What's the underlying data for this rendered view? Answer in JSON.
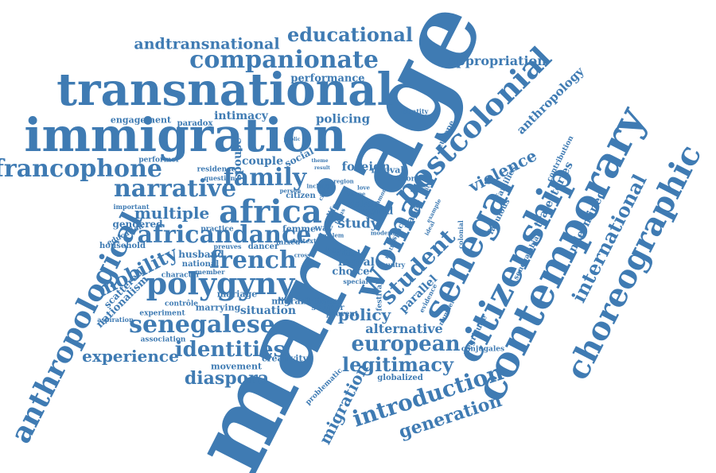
{
  "cloud": {
    "color": "#3f7bb3",
    "words": [
      "marriage",
      "transnational",
      "immigration",
      "senegal",
      "contemporary",
      "citizenship",
      "choreographic",
      "postcolonial",
      "woman",
      "africa",
      "polygyny",
      "anthropological",
      "companionate",
      "educational",
      "andtransnational",
      "francophone",
      "narrative",
      "family",
      "africandance",
      "french",
      "senegalese",
      "mobility",
      "multiple",
      "identities",
      "experience",
      "diaspora",
      "european",
      "legitimacy",
      "introduction",
      "generation",
      "international",
      "appropriation",
      "anthropology",
      "student",
      "violence",
      "policy",
      "alternative",
      "migration",
      "undermined",
      "trajectories",
      "performance",
      "intimacy",
      "policing",
      "engagement",
      "paradox",
      "couple",
      "social",
      "spouse",
      "foreign",
      "revival",
      "performer",
      "residence",
      "question",
      "gendered",
      "household",
      "education",
      "nationalism",
      "scattered",
      "husband",
      "national",
      "member",
      "character",
      "experiment",
      "association",
      "aspiration",
      "marrying",
      "mariage",
      "movement",
      "creativity",
      "situation",
      "migrant",
      "victimes",
      "s'aimer",
      "peuvent",
      "choice",
      "moral",
      "study",
      "world",
      "dakar",
      "article",
      "issue",
      "way",
      "femme",
      "dancer",
      "mixed",
      "context",
      "practice",
      "important",
      "europe",
      "colonial",
      "fabulous",
      "families",
      "contribution",
      "senegambian",
      "negritude",
      "conjugales",
      "globalized",
      "problematic",
      "parallel",
      "festival",
      "special",
      "number",
      "country",
      "evidence",
      "identity",
      "history",
      "paper",
      "space",
      "life",
      "citizen",
      "person",
      "circle",
      "love",
      "shape",
      "city",
      "region",
      "include",
      "focus",
      "example",
      "matter",
      "problem",
      "modern",
      "result",
      "public",
      "ideal",
      "theme",
      "common",
      "contrôle",
      "preuves",
      "cross"
    ]
  }
}
